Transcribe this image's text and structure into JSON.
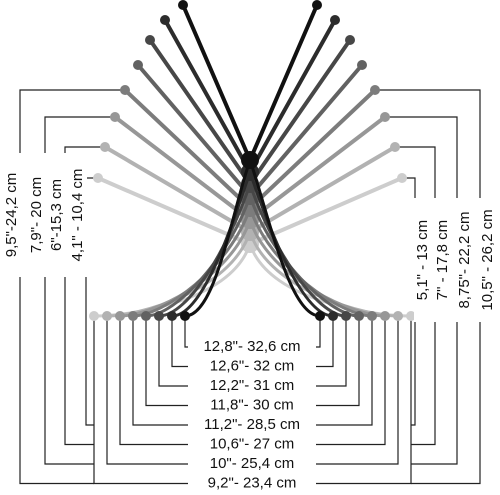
{
  "bottom_labels": [
    "12,8\"- 32,6 cm",
    "12,6\"- 32 cm",
    "12,2\"- 31 cm",
    "11,8\"- 30 cm",
    "11,2\"- 28,5 cm",
    "10,6\"- 27 cm",
    "10\"- 25,4 cm",
    "9,2\"- 23,4 cm"
  ],
  "left_labels": [
    "9,5\"-24,2 cm",
    "7,9\"- 20 cm",
    "6\"-15,3 cm",
    "4,1\" - 10,4 cm"
  ],
  "right_labels": [
    "5,1\" - 13 cm",
    "7\" - 17,8 cm",
    "8,75\"- 22,2 cm",
    "10,5\" - 26,2 cm"
  ]
}
